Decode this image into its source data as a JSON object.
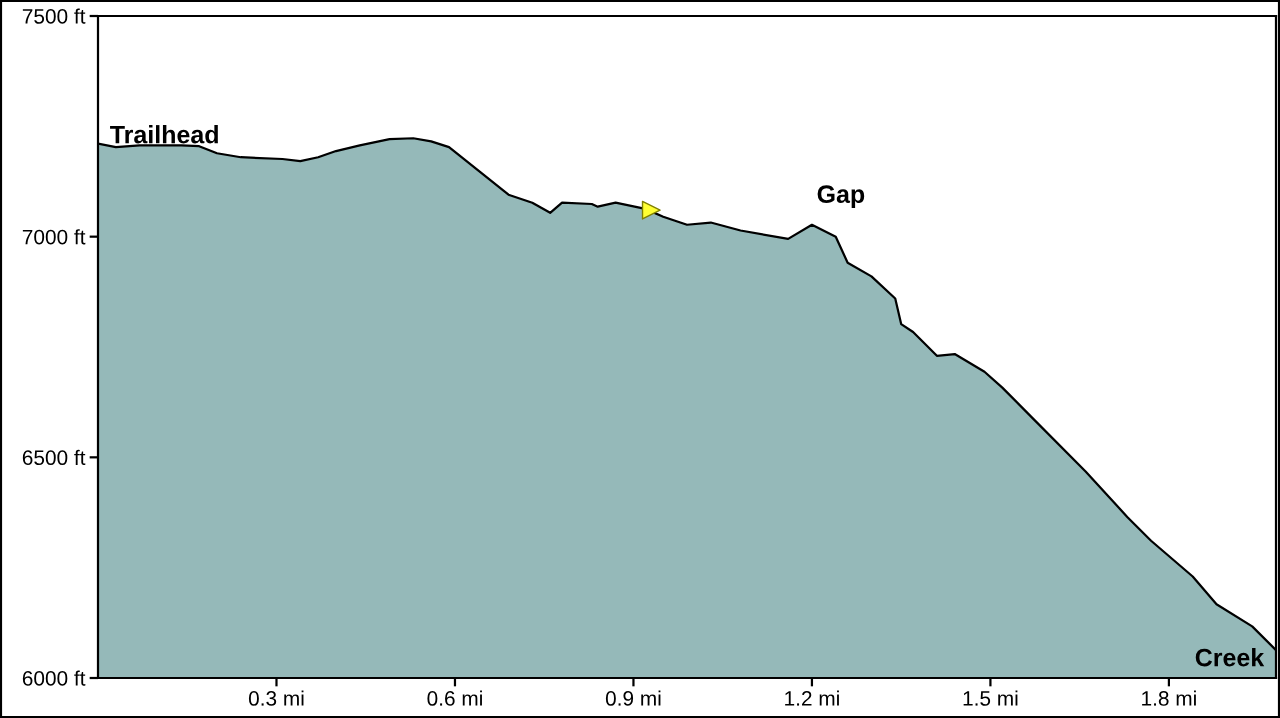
{
  "chart_data": {
    "type": "area",
    "x": [
      0,
      0.03,
      0.07,
      0.14,
      0.17,
      0.2,
      0.24,
      0.31,
      0.34,
      0.37,
      0.4,
      0.44,
      0.49,
      0.53,
      0.56,
      0.59,
      0.64,
      0.69,
      0.73,
      0.76,
      0.78,
      0.83,
      0.84,
      0.87,
      0.92,
      0.95,
      0.99,
      1.03,
      1.08,
      1.16,
      1.2,
      1.24,
      1.26,
      1.3,
      1.34,
      1.35,
      1.37,
      1.41,
      1.44,
      1.49,
      1.52,
      1.57,
      1.66,
      1.73,
      1.77,
      1.84,
      1.88,
      1.94,
      1.98
    ],
    "series": [
      {
        "color": "#95b9b9",
        "values": [
          7211,
          7203,
          7207,
          7207,
          7205,
          7189,
          7180,
          7176,
          7171,
          7180,
          7194,
          7207,
          7221,
          7223,
          7216,
          7203,
          7149,
          7095,
          7077,
          7054,
          7077,
          7074,
          7068,
          7077,
          7063,
          7045,
          7027,
          7032,
          7014,
          6995,
          7027,
          7000,
          6941,
          6910,
          6860,
          6802,
          6784,
          6730,
          6734,
          6694,
          6658,
          6590,
          6468,
          6365,
          6311,
          6230,
          6167,
          6117,
          6063
        ]
      },
      {
        "type": "scatter",
        "x": [
          0.93
        ],
        "values": [
          7060
        ],
        "color": "#ffff33",
        "marker": "triangle"
      }
    ],
    "xlim": [
      0,
      1.98
    ],
    "ylim": [
      6000,
      7500
    ],
    "xticks": [
      {
        "value": 0.3,
        "label": "0.3 mi"
      },
      {
        "value": 0.6,
        "label": "0.6 mi"
      },
      {
        "value": 0.9,
        "label": "0.9 mi"
      },
      {
        "value": 1.2,
        "label": "1.2 mi"
      },
      {
        "value": 1.5,
        "label": "1.5 mi"
      },
      {
        "value": 1.8,
        "label": "1.8 mi"
      }
    ],
    "yticks": [
      {
        "value": 6000,
        "label": "6000 ft"
      },
      {
        "value": 6500,
        "label": "6500 ft"
      },
      {
        "value": 7000,
        "label": "7000 ft"
      },
      {
        "value": 7500,
        "label": "7500 ft"
      }
    ],
    "annotations": [
      "Trailhead",
      "Gap",
      "Creek"
    ],
    "grid": false,
    "legend": false
  }
}
